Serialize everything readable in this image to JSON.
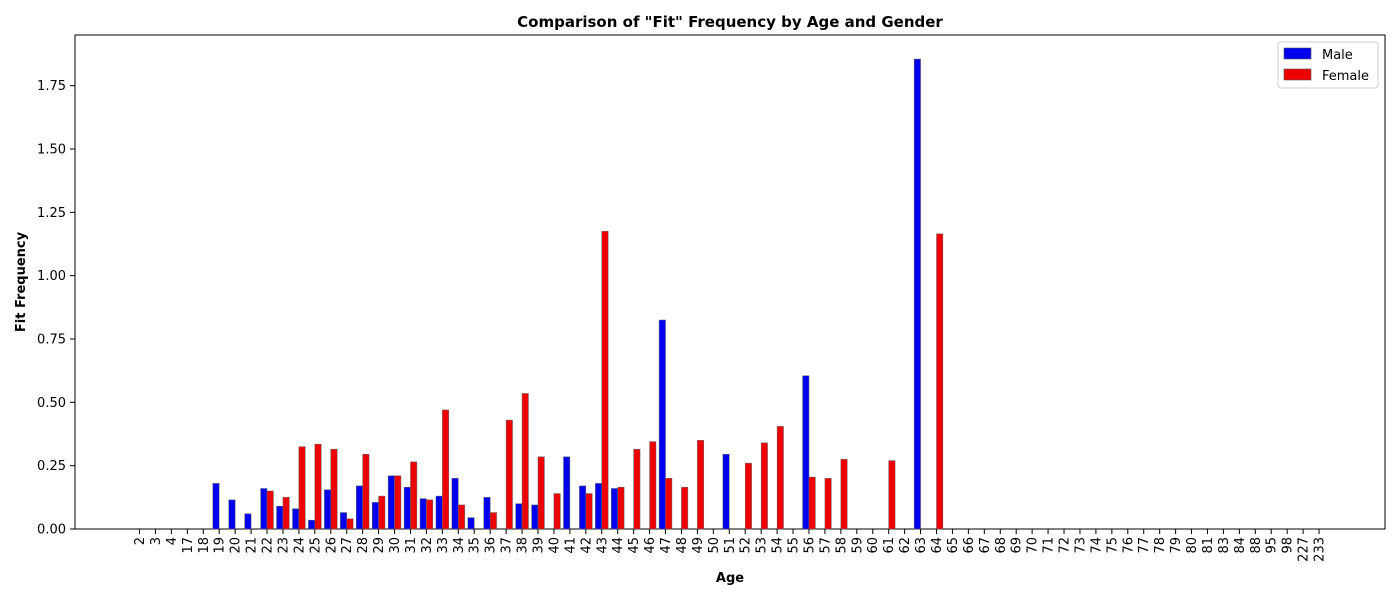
{
  "chart_data": {
    "type": "bar",
    "title": "Comparison of \"Fit\" Frequency by Age and Gender",
    "xlabel": "Age",
    "ylabel": "Fit Frequency",
    "ylim": [
      0,
      1.95
    ],
    "yticks": [
      "0.00",
      "0.25",
      "0.50",
      "0.75",
      "1.00",
      "1.25",
      "1.50",
      "1.75"
    ],
    "grid": false,
    "legend_position": "top-right",
    "categories": [
      "2",
      "3",
      "4",
      "17",
      "18",
      "19",
      "20",
      "21",
      "22",
      "23",
      "24",
      "25",
      "26",
      "27",
      "28",
      "29",
      "30",
      "31",
      "32",
      "33",
      "34",
      "35",
      "36",
      "37",
      "38",
      "39",
      "40",
      "41",
      "42",
      "43",
      "44",
      "45",
      "46",
      "47",
      "48",
      "49",
      "50",
      "51",
      "52",
      "53",
      "54",
      "55",
      "56",
      "57",
      "58",
      "59",
      "60",
      "61",
      "62",
      "63",
      "64",
      "65",
      "66",
      "67",
      "68",
      "69",
      "70",
      "71",
      "72",
      "73",
      "74",
      "75",
      "76",
      "77",
      "78",
      "79",
      "80",
      "81",
      "83",
      "84",
      "88",
      "95",
      "98",
      "227",
      "233"
    ],
    "series": [
      {
        "name": "Male",
        "color": "#0000ee",
        "values": [
          0,
          0,
          0,
          0,
          0,
          0.18,
          0.115,
          0.06,
          0.16,
          0.09,
          0.08,
          0.035,
          0.155,
          0.065,
          0.17,
          0.105,
          0.21,
          0.165,
          0.12,
          0.13,
          0.2,
          0.045,
          0.125,
          0,
          0.1,
          0.095,
          0,
          0.285,
          0.17,
          0.18,
          0.16,
          0,
          0,
          0.825,
          0,
          0,
          0,
          0.295,
          0,
          0,
          0,
          0,
          0.605,
          0,
          0,
          0,
          0,
          0,
          0,
          1.855,
          0,
          0,
          0,
          0,
          0,
          0,
          0,
          0,
          0,
          0,
          0,
          0,
          0,
          0,
          0,
          0,
          0,
          0,
          0,
          0,
          0,
          0,
          0,
          0,
          0
        ]
      },
      {
        "name": "Female",
        "color": "#ee0000",
        "values": [
          0,
          0,
          0,
          0,
          0,
          0,
          0,
          0,
          0.15,
          0.125,
          0.325,
          0.335,
          0.315,
          0.04,
          0.295,
          0.13,
          0.21,
          0.265,
          0.115,
          0.47,
          0.095,
          0,
          0.065,
          0.43,
          0.535,
          0.285,
          0.14,
          0,
          0.14,
          1.175,
          0.165,
          0.315,
          0.345,
          0.2,
          0.165,
          0.35,
          0,
          0,
          0.26,
          0.34,
          0.405,
          0,
          0.205,
          0.2,
          0.275,
          0,
          0,
          0.27,
          0,
          0,
          1.165,
          0,
          0,
          0,
          0,
          0,
          0,
          0,
          0,
          0,
          0,
          0,
          0,
          0,
          0,
          0,
          0,
          0,
          0,
          0,
          0,
          0,
          0,
          0,
          0
        ]
      }
    ]
  }
}
